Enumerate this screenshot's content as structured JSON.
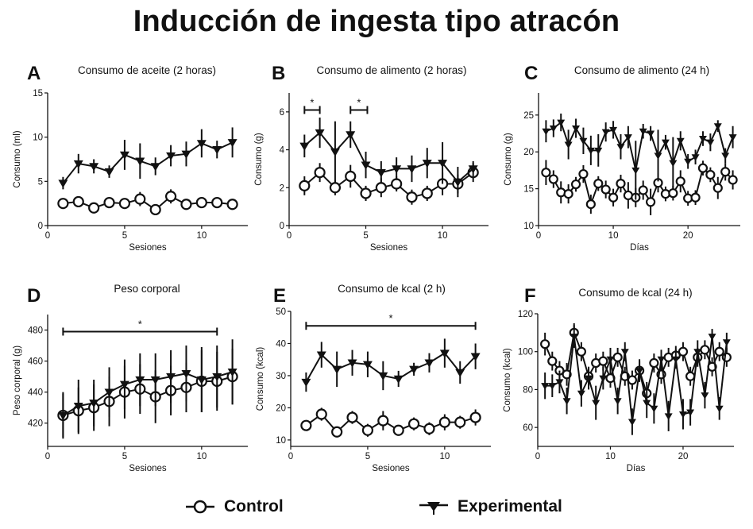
{
  "title": "Inducción de ingesta tipo atracón",
  "legend": [
    {
      "name": "Control",
      "marker": "open-circle-icon"
    },
    {
      "name": "Experimental",
      "marker": "filled-down-triangle-icon"
    }
  ],
  "chart_data": [
    {
      "id": "A",
      "type": "line",
      "title": "Consumo de aceite (2 horas)",
      "xlabel": "Sesiones",
      "ylabel": "Consumo (ml)",
      "xlim": [
        0,
        13
      ],
      "ylim": [
        0,
        15
      ],
      "xticks": [
        0,
        5,
        10
      ],
      "yticks": [
        0,
        5,
        10,
        15
      ],
      "x": [
        1,
        2,
        3,
        4,
        5,
        6,
        7,
        8,
        9,
        10,
        11,
        12
      ],
      "series": [
        {
          "name": "Experimental",
          "values": [
            4.8,
            7.0,
            6.7,
            6.1,
            8.0,
            7.3,
            6.7,
            7.9,
            8.1,
            9.3,
            8.6,
            9.4
          ],
          "err": [
            0.7,
            1.1,
            0.8,
            0.7,
            1.7,
            2.0,
            1.0,
            1.2,
            1.4,
            1.6,
            1.0,
            1.7
          ]
        },
        {
          "name": "Control",
          "values": [
            2.5,
            2.7,
            2.0,
            2.6,
            2.5,
            3.0,
            1.8,
            3.3,
            2.4,
            2.6,
            2.6,
            2.4
          ],
          "err": [
            0.3,
            0.3,
            0.3,
            0.3,
            0.4,
            0.8,
            0.3,
            0.8,
            0.4,
            0.3,
            0.3,
            0.4
          ]
        }
      ],
      "significance": []
    },
    {
      "id": "B",
      "type": "line",
      "title": "Consumo de alimento (2 horas)",
      "xlabel": "Sesiones",
      "ylabel": "Consumo (g)",
      "xlim": [
        0,
        13
      ],
      "ylim": [
        0,
        7
      ],
      "xticks": [
        0,
        5,
        10
      ],
      "yticks": [
        0,
        2,
        4,
        6
      ],
      "x": [
        1,
        2,
        3,
        4,
        5,
        6,
        7,
        8,
        9,
        10,
        11,
        12
      ],
      "series": [
        {
          "name": "Experimental",
          "values": [
            4.2,
            4.9,
            3.9,
            4.8,
            3.2,
            2.8,
            3.0,
            3.0,
            3.3,
            3.3,
            2.3,
            3.0
          ],
          "err": [
            0.6,
            0.8,
            1.6,
            0.7,
            0.7,
            0.6,
            0.6,
            0.7,
            0.8,
            1.1,
            0.8,
            0.4
          ]
        },
        {
          "name": "Control",
          "values": [
            2.1,
            2.8,
            2.0,
            2.6,
            1.7,
            2.0,
            2.2,
            1.5,
            1.7,
            2.2,
            2.2,
            2.8
          ],
          "err": [
            0.5,
            0.5,
            0.4,
            0.6,
            0.4,
            0.5,
            0.4,
            0.4,
            0.4,
            0.6,
            0.5,
            0.5
          ]
        }
      ],
      "significance": [
        {
          "from": 1,
          "to": 2,
          "y": 6.1,
          "label": "*"
        },
        {
          "from": 4,
          "to": 5.1,
          "y": 6.1,
          "label": "*"
        }
      ]
    },
    {
      "id": "C",
      "type": "line",
      "title": "Consumo de alimento (24 h)",
      "xlabel": "Días",
      "ylabel": "Consumo (g)",
      "xlim": [
        0,
        27
      ],
      "ylim": [
        10,
        28
      ],
      "xticks": [
        0,
        10,
        20
      ],
      "yticks": [
        10,
        15,
        20,
        25
      ],
      "x": [
        1,
        2,
        3,
        4,
        5,
        6,
        7,
        8,
        9,
        10,
        11,
        12,
        13,
        14,
        15,
        16,
        17,
        18,
        19,
        20,
        21,
        22,
        23,
        24,
        25,
        26
      ],
      "series": [
        {
          "name": "Experimental",
          "values": [
            22.8,
            23.2,
            24.0,
            21.0,
            23.2,
            21.5,
            20.2,
            20.2,
            22.7,
            23.0,
            20.7,
            22.0,
            17.5,
            22.8,
            22.5,
            19.5,
            21.3,
            18.5,
            21.5,
            18.7,
            19.3,
            21.8,
            21.3,
            23.5,
            19.5,
            22.0
          ],
          "err": [
            1.5,
            1.2,
            1.2,
            2.0,
            1.3,
            1.8,
            2.0,
            2.2,
            1.3,
            1.2,
            1.7,
            1.5,
            4.0,
            1.0,
            1.0,
            3.5,
            1.0,
            3.5,
            1.3,
            1.0,
            1.0,
            1.0,
            1.2,
            0.8,
            1.0,
            1.5
          ]
        },
        {
          "name": "Control",
          "values": [
            17.2,
            16.3,
            14.5,
            14.3,
            15.6,
            17.0,
            12.9,
            15.7,
            14.9,
            13.8,
            15.7,
            14.1,
            13.8,
            14.8,
            13.2,
            15.8,
            14.3,
            14.4,
            16.0,
            13.7,
            13.8,
            17.8,
            16.9,
            15.1,
            17.3,
            16.2
          ],
          "err": [
            1.7,
            1.2,
            1.5,
            1.3,
            1.0,
            1.2,
            1.3,
            1.0,
            1.2,
            1.2,
            1.2,
            1.8,
            1.3,
            1.3,
            1.8,
            1.3,
            1.0,
            1.0,
            1.5,
            1.0,
            1.0,
            1.0,
            1.0,
            1.5,
            1.2,
            1.3
          ]
        }
      ],
      "significance": []
    },
    {
      "id": "D",
      "type": "line",
      "title": "Peso corporal",
      "xlabel": "Sesiones",
      "ylabel": "Peso corporal (g)",
      "xlim": [
        0,
        13
      ],
      "ylim": [
        405,
        490
      ],
      "xticks": [
        0,
        5,
        10
      ],
      "yticks": [
        420,
        440,
        460,
        480
      ],
      "x": [
        1,
        2,
        3,
        4,
        5,
        6,
        7,
        8,
        9,
        10,
        11,
        12
      ],
      "series": [
        {
          "name": "Experimental",
          "values": [
            425,
            431,
            433,
            440,
            445,
            448,
            448,
            450,
            452,
            448,
            450,
            453
          ],
          "err": [
            14,
            17,
            15,
            16,
            16,
            17,
            17,
            17,
            18,
            21,
            20,
            21
          ]
        },
        {
          "name": "Control",
          "values": [
            425,
            428,
            430,
            434,
            440,
            442,
            437,
            441,
            443,
            447,
            447,
            450
          ],
          "err": [
            15,
            15,
            15,
            16,
            17,
            16,
            17,
            16,
            16,
            20,
            19,
            18
          ]
        }
      ],
      "significance": [
        {
          "from": 1,
          "to": 11,
          "y": 479,
          "label": "*"
        }
      ]
    },
    {
      "id": "E",
      "type": "line",
      "title": "Consumo de kcal (2 h)",
      "xlabel": "Sesiones",
      "ylabel": "Consumo (kcal)",
      "xlim": [
        0,
        13
      ],
      "ylim": [
        8,
        50
      ],
      "xticks": [
        0,
        5,
        10
      ],
      "yticks": [
        10,
        20,
        30,
        40,
        50
      ],
      "x": [
        1,
        2,
        3,
        4,
        5,
        6,
        7,
        8,
        9,
        10,
        11,
        12
      ],
      "series": [
        {
          "name": "Experimental",
          "values": [
            28,
            36.5,
            32,
            34,
            33.5,
            30,
            29,
            32,
            34,
            37,
            31,
            36
          ],
          "err": [
            3,
            4,
            5.5,
            4,
            4,
            4.5,
            2.5,
            2,
            3,
            4.5,
            3.5,
            4
          ]
        },
        {
          "name": "Control",
          "values": [
            14.5,
            18,
            12.5,
            17,
            13,
            16,
            13,
            15,
            13.5,
            15.5,
            15.5,
            17
          ],
          "err": [
            1.2,
            2,
            1.5,
            2,
            2,
            3,
            1.5,
            2,
            2,
            2.5,
            2,
            2.5
          ]
        }
      ],
      "significance": [
        {
          "from": 1,
          "to": 12,
          "y": 45.5,
          "label": "*"
        }
      ]
    },
    {
      "id": "F",
      "type": "line",
      "title": "Consumo de kcal (24 h)",
      "xlabel": "Días",
      "ylabel": "Consumo (kcal)",
      "xlim": [
        0,
        27
      ],
      "ylim": [
        50,
        120
      ],
      "xticks": [
        0,
        10,
        20
      ],
      "yticks": [
        60,
        80,
        100,
        120
      ],
      "x": [
        1,
        2,
        3,
        4,
        5,
        6,
        7,
        8,
        9,
        10,
        11,
        12,
        13,
        14,
        15,
        16,
        17,
        18,
        19,
        20,
        21,
        22,
        23,
        24,
        25,
        26
      ],
      "series": [
        {
          "name": "Experimental",
          "values": [
            82,
            82,
            84,
            74,
            108,
            78,
            86,
            73,
            86,
            96,
            74,
            100,
            63,
            90,
            73,
            70,
            96,
            66,
            96,
            67,
            68,
            100,
            77,
            108,
            70,
            105
          ],
          "err": [
            7,
            6,
            6,
            7,
            6,
            7,
            6,
            9,
            6,
            6,
            7,
            5,
            7,
            6,
            8,
            8,
            5,
            8,
            5,
            8,
            7,
            6,
            7,
            4,
            6,
            5
          ]
        },
        {
          "name": "Control",
          "values": [
            104,
            95,
            90,
            88,
            110,
            100,
            87,
            94,
            95,
            86,
            97,
            87,
            85,
            90,
            78,
            94,
            88,
            97,
            98,
            100,
            87,
            97,
            101,
            92,
            100,
            97
          ],
          "err": [
            6,
            5,
            5,
            6,
            5,
            5,
            5,
            5,
            5,
            5,
            5,
            5,
            5,
            5,
            6,
            5,
            5,
            5,
            5,
            5,
            5,
            5,
            5,
            5,
            5,
            5
          ]
        }
      ],
      "significance": []
    }
  ]
}
